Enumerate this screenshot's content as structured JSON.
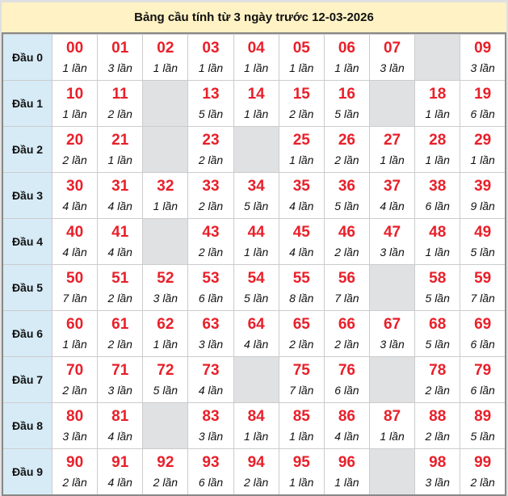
{
  "title": "Bảng cầu tính từ 3 ngày trước 12-03-2026",
  "colors": {
    "number": "#e8202a",
    "header_bg": "#fff2c4",
    "row_head_bg": "#d6ebf6",
    "empty_bg": "#e0e1e3"
  },
  "rows": [
    {
      "label": "Đầu 0",
      "cells": [
        [
          "00",
          "1 lần"
        ],
        [
          "01",
          "3 lần"
        ],
        [
          "02",
          "1 lần"
        ],
        [
          "03",
          "1 lần"
        ],
        [
          "04",
          "1 lần"
        ],
        [
          "05",
          "1 lần"
        ],
        [
          "06",
          "1 lần"
        ],
        [
          "07",
          "3 lần"
        ],
        null,
        [
          "09",
          "3 lần"
        ]
      ]
    },
    {
      "label": "Đầu 1",
      "cells": [
        [
          "10",
          "1 lần"
        ],
        [
          "11",
          "2 lần"
        ],
        null,
        [
          "13",
          "5 lần"
        ],
        [
          "14",
          "1 lần"
        ],
        [
          "15",
          "2 lần"
        ],
        [
          "16",
          "5 lần"
        ],
        null,
        [
          "18",
          "1 lần"
        ],
        [
          "19",
          "6 lần"
        ]
      ]
    },
    {
      "label": "Đầu 2",
      "cells": [
        [
          "20",
          "2 lần"
        ],
        [
          "21",
          "1 lần"
        ],
        null,
        [
          "23",
          "2 lần"
        ],
        null,
        [
          "25",
          "1 lần"
        ],
        [
          "26",
          "2 lần"
        ],
        [
          "27",
          "1 lần"
        ],
        [
          "28",
          "1 lần"
        ],
        [
          "29",
          "1 lần"
        ]
      ]
    },
    {
      "label": "Đầu 3",
      "cells": [
        [
          "30",
          "4 lần"
        ],
        [
          "31",
          "4 lần"
        ],
        [
          "32",
          "1 lần"
        ],
        [
          "33",
          "2 lần"
        ],
        [
          "34",
          "5 lần"
        ],
        [
          "35",
          "4 lần"
        ],
        [
          "36",
          "5 lần"
        ],
        [
          "37",
          "4 lần"
        ],
        [
          "38",
          "6 lần"
        ],
        [
          "39",
          "9 lần"
        ]
      ]
    },
    {
      "label": "Đầu 4",
      "cells": [
        [
          "40",
          "4 lần"
        ],
        [
          "41",
          "4 lần"
        ],
        null,
        [
          "43",
          "2 lần"
        ],
        [
          "44",
          "1 lần"
        ],
        [
          "45",
          "4 lần"
        ],
        [
          "46",
          "2 lần"
        ],
        [
          "47",
          "3 lần"
        ],
        [
          "48",
          "1 lần"
        ],
        [
          "49",
          "5 lần"
        ]
      ]
    },
    {
      "label": "Đầu 5",
      "cells": [
        [
          "50",
          "7 lần"
        ],
        [
          "51",
          "2 lần"
        ],
        [
          "52",
          "3 lần"
        ],
        [
          "53",
          "6 lần"
        ],
        [
          "54",
          "5 lần"
        ],
        [
          "55",
          "8 lần"
        ],
        [
          "56",
          "7 lần"
        ],
        null,
        [
          "58",
          "5 lần"
        ],
        [
          "59",
          "7 lần"
        ]
      ]
    },
    {
      "label": "Đầu 6",
      "cells": [
        [
          "60",
          "1 lần"
        ],
        [
          "61",
          "2 lần"
        ],
        [
          "62",
          "1 lần"
        ],
        [
          "63",
          "3 lần"
        ],
        [
          "64",
          "4 lần"
        ],
        [
          "65",
          "2 lần"
        ],
        [
          "66",
          "2 lần"
        ],
        [
          "67",
          "3 lần"
        ],
        [
          "68",
          "5 lần"
        ],
        [
          "69",
          "6 lần"
        ]
      ]
    },
    {
      "label": "Đầu 7",
      "cells": [
        [
          "70",
          "2 lần"
        ],
        [
          "71",
          "3 lần"
        ],
        [
          "72",
          "5 lần"
        ],
        [
          "73",
          "4 lần"
        ],
        null,
        [
          "75",
          "7 lần"
        ],
        [
          "76",
          "6 lần"
        ],
        null,
        [
          "78",
          "2 lần"
        ],
        [
          "79",
          "6 lần"
        ]
      ]
    },
    {
      "label": "Đầu 8",
      "cells": [
        [
          "80",
          "3 lần"
        ],
        [
          "81",
          "4 lần"
        ],
        null,
        [
          "83",
          "3 lần"
        ],
        [
          "84",
          "1 lần"
        ],
        [
          "85",
          "1 lần"
        ],
        [
          "86",
          "4 lần"
        ],
        [
          "87",
          "1 lần"
        ],
        [
          "88",
          "2 lần"
        ],
        [
          "89",
          "5 lần"
        ]
      ]
    },
    {
      "label": "Đầu 9",
      "cells": [
        [
          "90",
          "2 lần"
        ],
        [
          "91",
          "4 lần"
        ],
        [
          "92",
          "2 lần"
        ],
        [
          "93",
          "6 lần"
        ],
        [
          "94",
          "2 lần"
        ],
        [
          "95",
          "1 lần"
        ],
        [
          "96",
          "1 lần"
        ],
        null,
        [
          "98",
          "3 lần"
        ],
        [
          "99",
          "2 lần"
        ]
      ]
    }
  ]
}
